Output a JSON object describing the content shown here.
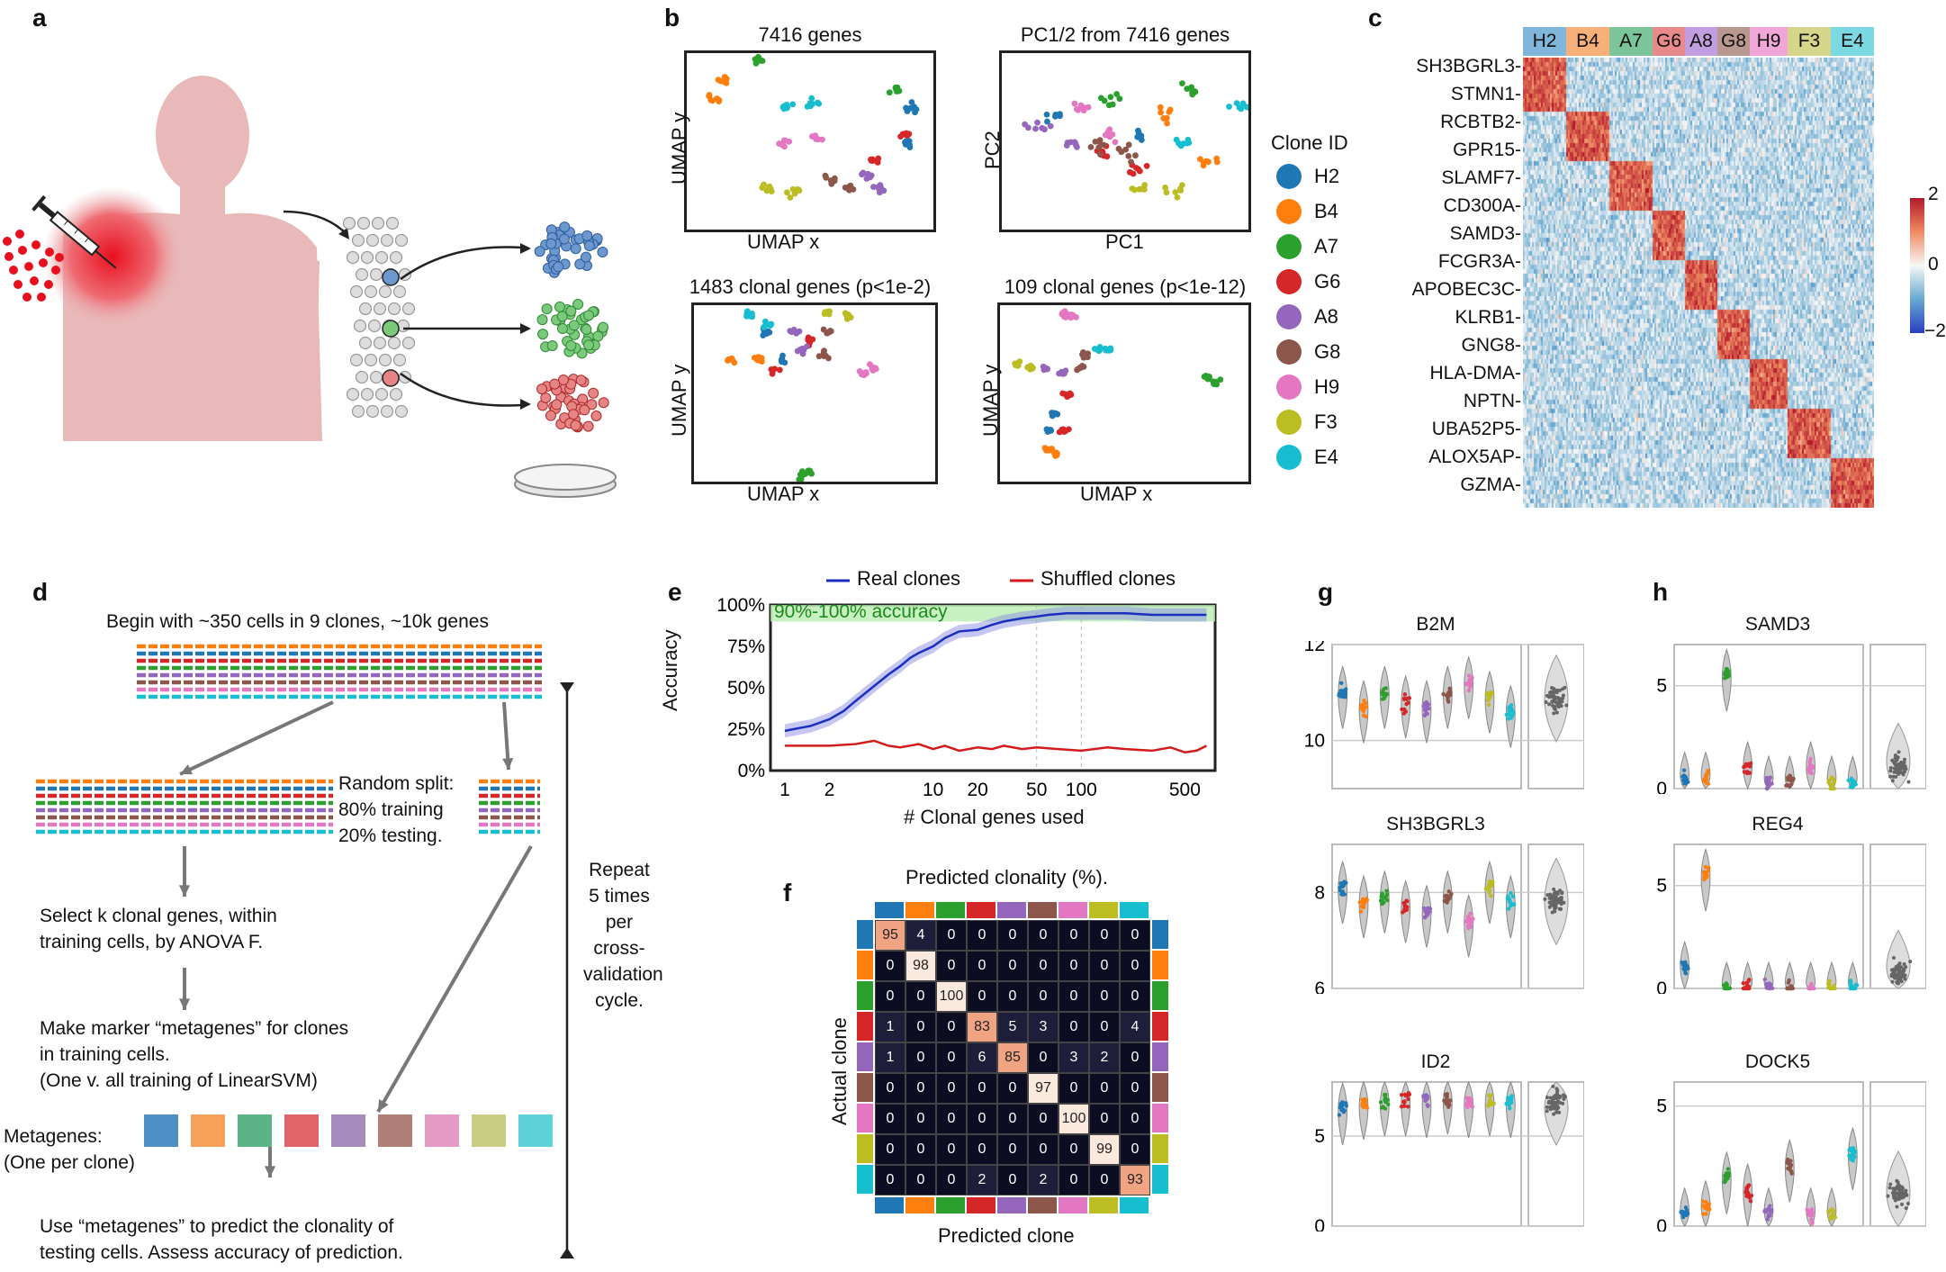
{
  "panels": {
    "a": "a",
    "b": "b",
    "c": "c",
    "d": "d",
    "e": "e",
    "f": "f",
    "g": "g",
    "h": "h"
  },
  "clone_colors": [
    "#1f77b4",
    "#ff7f0e",
    "#2ca02c",
    "#d62728",
    "#9467bd",
    "#8c564b",
    "#e377c2",
    "#bcbd22",
    "#17becf"
  ],
  "metagene_colors": [
    "#4c8fc2",
    "#f5a15a",
    "#5bb386",
    "#e0646a",
    "#a78bbd",
    "#b07f77",
    "#e49ac5",
    "#c9cc84",
    "#5fd1d9"
  ],
  "umap": {
    "p1": {
      "title": "7416 genes",
      "xlabel": "UMAP x",
      "ylabel": "UMAP y"
    },
    "p2": {
      "title": "PC1/2 from 7416 genes",
      "xlabel": "PC1",
      "ylabel": "PC2"
    },
    "p3": {
      "title": "1483 clonal genes (p<1e-2)",
      "xlabel": "UMAP x",
      "ylabel": "UMAP y"
    },
    "p4": {
      "title": "109 clonal genes (p<1e-12)",
      "xlabel": "UMAP x",
      "ylabel": "UMAP y"
    }
  },
  "legend": {
    "title": "Clone ID",
    "items": [
      "H2",
      "B4",
      "A7",
      "G6",
      "A8",
      "G8",
      "H9",
      "F3",
      "E4"
    ]
  },
  "heatmap": {
    "clones": [
      "H2",
      "B4",
      "A7",
      "G6",
      "A8",
      "G8",
      "H9",
      "F3",
      "E4"
    ],
    "clone_header_colors": [
      "#7fb6d9",
      "#f7b07a",
      "#7cc49a",
      "#e98a8a",
      "#c29ee0",
      "#b9988f",
      "#f0a6d8",
      "#d6d68a",
      "#7ad9e3"
    ],
    "genes": [
      "SH3BGRL3",
      "STMN1",
      "RCBTB2",
      "GPR15",
      "SLAMF7",
      "CD300A",
      "SAMD3",
      "FCGR3A",
      "APOBEC3C",
      "KLRB1",
      "GNG8",
      "HLA-DMA",
      "NPTN",
      "UBA52P5",
      "ALOX5AP",
      "GZMA"
    ],
    "colorbar_ticks": [
      "2",
      "0",
      "−2"
    ]
  },
  "flow": {
    "start": "Begin with ~350 cells in 9 clones, ~10k genes",
    "split": [
      "Random split:",
      "80% training",
      "20% testing."
    ],
    "select": [
      "Select k clonal genes, within",
      "training cells, by ANOVA F."
    ],
    "make": [
      "Make marker “metagenes” for clones",
      "in training cells.",
      "(One v. all training of LinearSVM)"
    ],
    "metagenes_label": [
      "Metagenes:",
      "(One per clone)"
    ],
    "use": [
      "Use “metagenes” to predict the clonality of",
      "testing cells.  Assess accuracy of prediction."
    ],
    "repeat": [
      "Repeat",
      "5 times",
      "per",
      "cross-",
      "validation",
      "cycle."
    ]
  },
  "chart_data": [
    {
      "type": "line",
      "legend": [
        "Real clones",
        "Shuffled clones"
      ],
      "band_label": "90%-100% accuracy",
      "xlabel": "# Clonal genes used",
      "ylabel": "Accuracy",
      "xscale": "log",
      "xticks": [
        "1",
        "2",
        "10",
        "20",
        "50",
        "100",
        "500"
      ],
      "yticks": [
        "100%",
        "75%",
        "50%",
        "25%",
        "0%"
      ],
      "ylim": [
        0,
        100
      ],
      "series": [
        {
          "name": "Real clones",
          "color": "#1a2fbf",
          "x": [
            1,
            1.5,
            2,
            2.5,
            3,
            4,
            5,
            6,
            7,
            8,
            10,
            12,
            15,
            20,
            25,
            30,
            40,
            50,
            60,
            80,
            100,
            150,
            200,
            300,
            400,
            500,
            700
          ],
          "y": [
            24,
            27,
            31,
            36,
            42,
            51,
            58,
            63,
            68,
            71,
            75,
            80,
            84,
            85,
            88,
            90,
            92,
            93,
            94,
            95,
            95,
            95,
            95,
            94,
            94,
            94,
            94
          ]
        },
        {
          "name": "Shuffled clones",
          "color": "#d41a1a",
          "x": [
            1,
            1.5,
            2,
            3,
            4,
            5,
            6,
            8,
            10,
            12,
            15,
            20,
            25,
            30,
            40,
            50,
            70,
            100,
            150,
            200,
            300,
            400,
            500,
            600,
            700
          ],
          "y": [
            15,
            15,
            15,
            16,
            18,
            15,
            14,
            16,
            13,
            15,
            12,
            14,
            13,
            15,
            13,
            14,
            13,
            12,
            14,
            13,
            12,
            14,
            11,
            12,
            15
          ]
        }
      ]
    },
    {
      "type": "heatmap",
      "title": "Predicted clonality (%).",
      "xlabel": "Predicted clone",
      "ylabel": "Actual clone",
      "matrix": [
        [
          95,
          4,
          0,
          0,
          0,
          0,
          0,
          0,
          0
        ],
        [
          0,
          98,
          0,
          0,
          0,
          0,
          0,
          0,
          0
        ],
        [
          0,
          0,
          100,
          0,
          0,
          0,
          0,
          0,
          0
        ],
        [
          1,
          0,
          0,
          83,
          5,
          3,
          0,
          0,
          4
        ],
        [
          1,
          0,
          0,
          6,
          85,
          0,
          3,
          2,
          0
        ],
        [
          0,
          0,
          0,
          0,
          0,
          97,
          0,
          0,
          0
        ],
        [
          0,
          0,
          0,
          0,
          0,
          0,
          100,
          0,
          0
        ],
        [
          0,
          0,
          0,
          0,
          0,
          0,
          0,
          99,
          0
        ],
        [
          0,
          0,
          0,
          2,
          0,
          2,
          0,
          0,
          93
        ]
      ]
    }
  ],
  "violins_g": [
    {
      "title": "B2M",
      "yticks": [
        "12",
        "10"
      ],
      "ylim": [
        9,
        12
      ],
      "medians": [
        11,
        10.7,
        11,
        10.8,
        10.7,
        11,
        11.2,
        10.9,
        10.6
      ]
    },
    {
      "title": "SH3BGRL3",
      "yticks": [
        "8",
        "6"
      ],
      "ylim": [
        6,
        9
      ],
      "medians": [
        8.1,
        7.8,
        7.9,
        7.7,
        7.6,
        7.9,
        7.4,
        8.1,
        7.8
      ]
    },
    {
      "title": "ID2",
      "yticks": [
        "5",
        "0"
      ],
      "ylim": [
        0,
        8
      ],
      "medians": [
        6.5,
        6.8,
        7,
        7,
        6.9,
        7.1,
        6.9,
        7,
        6.9
      ]
    }
  ],
  "violins_h": [
    {
      "title": "SAMD3",
      "yticks": [
        "5",
        "0"
      ],
      "ylim": [
        0,
        7
      ],
      "medians": [
        0.5,
        0.5,
        5.5,
        1,
        0.3,
        0.3,
        1,
        0.3,
        0.3
      ]
    },
    {
      "title": "REG4",
      "yticks": [
        "5",
        "0"
      ],
      "ylim": [
        0,
        7
      ],
      "medians": [
        1,
        5.5,
        0,
        0,
        0,
        0,
        0,
        0,
        0
      ]
    },
    {
      "title": "DOCK5",
      "yticks": [
        "5",
        "0"
      ],
      "ylim": [
        0,
        6
      ],
      "medians": [
        0.5,
        0.8,
        2,
        1.5,
        0.5,
        2.5,
        0.5,
        0.5,
        3
      ]
    }
  ]
}
